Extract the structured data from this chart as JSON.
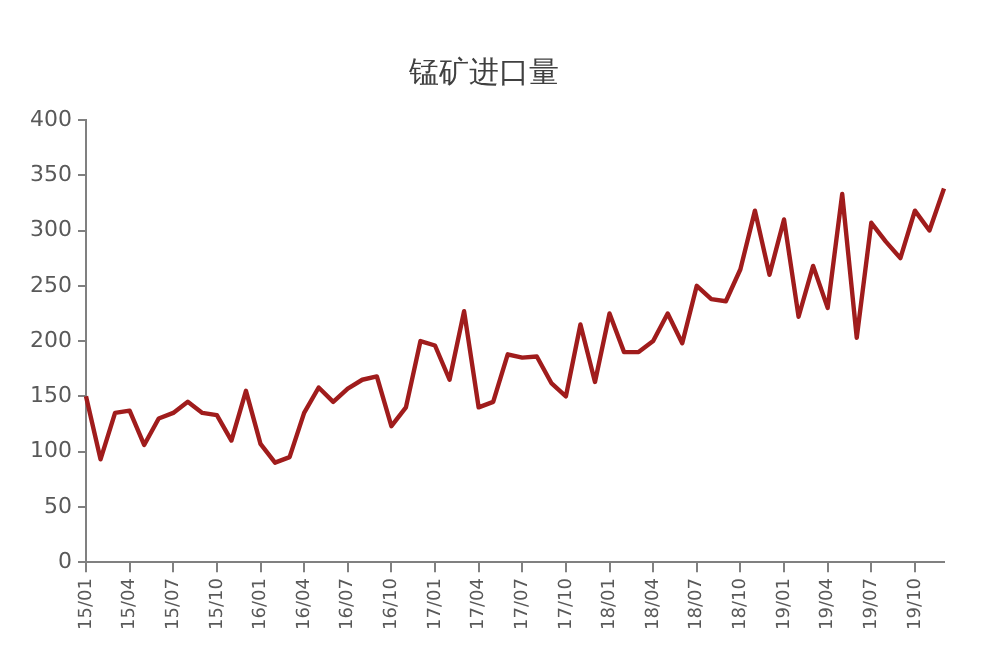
{
  "chart_data": {
    "type": "line",
    "title": "锰矿进口量",
    "categories": [
      "15/01",
      null,
      null,
      "15/04",
      null,
      null,
      "15/07",
      null,
      null,
      "15/10",
      null,
      null,
      "16/01",
      null,
      null,
      "16/04",
      null,
      null,
      "16/07",
      null,
      null,
      "16/10",
      null,
      null,
      "17/01",
      null,
      null,
      "17/04",
      null,
      null,
      "17/07",
      null,
      null,
      "17/10",
      null,
      null,
      "18/01",
      null,
      null,
      "18/04",
      null,
      null,
      "18/07",
      null,
      null,
      "18/10",
      null,
      null,
      "19/01",
      null,
      null,
      "19/04",
      null,
      null,
      "19/07",
      null,
      null,
      "19/10",
      null,
      null
    ],
    "series": [
      {
        "color": "#a01c1c",
        "values": [
          150,
          93,
          135,
          137,
          106,
          130,
          135,
          145,
          135,
          133,
          110,
          155,
          107,
          90,
          95,
          135,
          158,
          145,
          157,
          165,
          168,
          123,
          140,
          200,
          196,
          165,
          227,
          140,
          145,
          188,
          185,
          186,
          162,
          150,
          215,
          163,
          225,
          190,
          190,
          200,
          225,
          198,
          250,
          238,
          236,
          265,
          318,
          260,
          310,
          222,
          268,
          230,
          333,
          203,
          307,
          290,
          275,
          318,
          300,
          338
        ]
      }
    ],
    "ylim": [
      0,
      400
    ],
    "yticks": [
      0,
      50,
      100,
      150,
      200,
      250,
      300,
      350,
      400
    ],
    "grid": false,
    "legend": false,
    "marker": "none",
    "line_style": "solid"
  }
}
